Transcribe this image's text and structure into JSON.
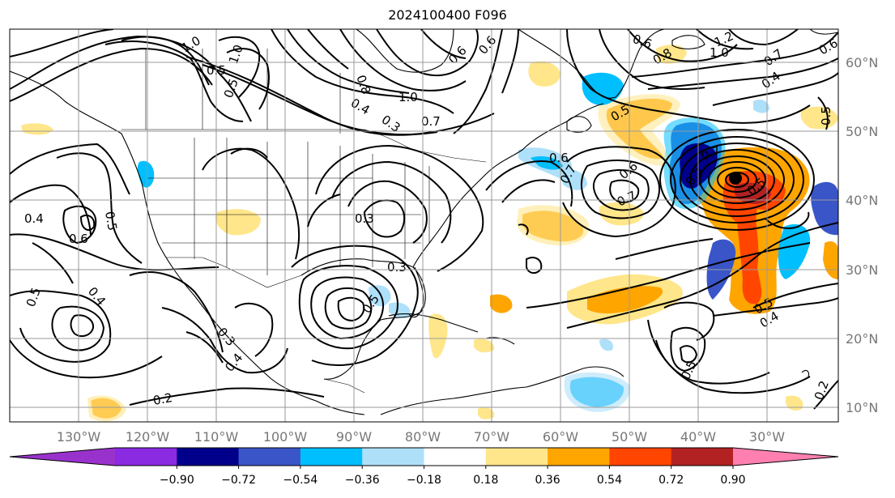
{
  "title": "2024100400 F096",
  "map": {
    "lon_labels": [
      "130°W",
      "120°W",
      "110°W",
      "100°W",
      "90°W",
      "80°W",
      "70°W",
      "60°W",
      "50°W",
      "40°W",
      "30°W"
    ],
    "lat_labels": [
      "60°N",
      "50°N",
      "40°N",
      "30°N",
      "20°N",
      "10°N"
    ],
    "contour_labels": [
      "1.0",
      "0.5",
      "1.0",
      "0.8",
      "0.5",
      "0.4",
      "1.0",
      "0.7",
      "0.3",
      "0.6",
      "0.6",
      "0.6",
      "0.7",
      "0.6",
      "0.8",
      "1.2",
      "1.0",
      "0.7",
      "0.4",
      "0.5",
      "0.6",
      "0.5",
      "0.7",
      "0.5",
      "0.5",
      "0.6",
      "0.7",
      "0.3",
      "0.3",
      "0.5",
      "0.4",
      "0.5",
      "0.6",
      "0.5",
      "0.4",
      "0.3",
      "0.4",
      "0.2",
      "0.5",
      "0.4",
      "0.5",
      "0.2"
    ]
  },
  "colorbar": {
    "tick_labels": [
      "−0.90",
      "−0.72",
      "−0.54",
      "−0.36",
      "−0.18",
      "0.18",
      "0.36",
      "0.54",
      "0.72",
      "0.90"
    ],
    "colors": [
      "#9932cc",
      "#8a2be2",
      "#00008b",
      "#3a55c8",
      "#00bfff",
      "#aee0fa",
      "#ffffff",
      "#ffe68a",
      "#ffa500",
      "#ff4500",
      "#b22222",
      "#ff80b0"
    ]
  }
}
